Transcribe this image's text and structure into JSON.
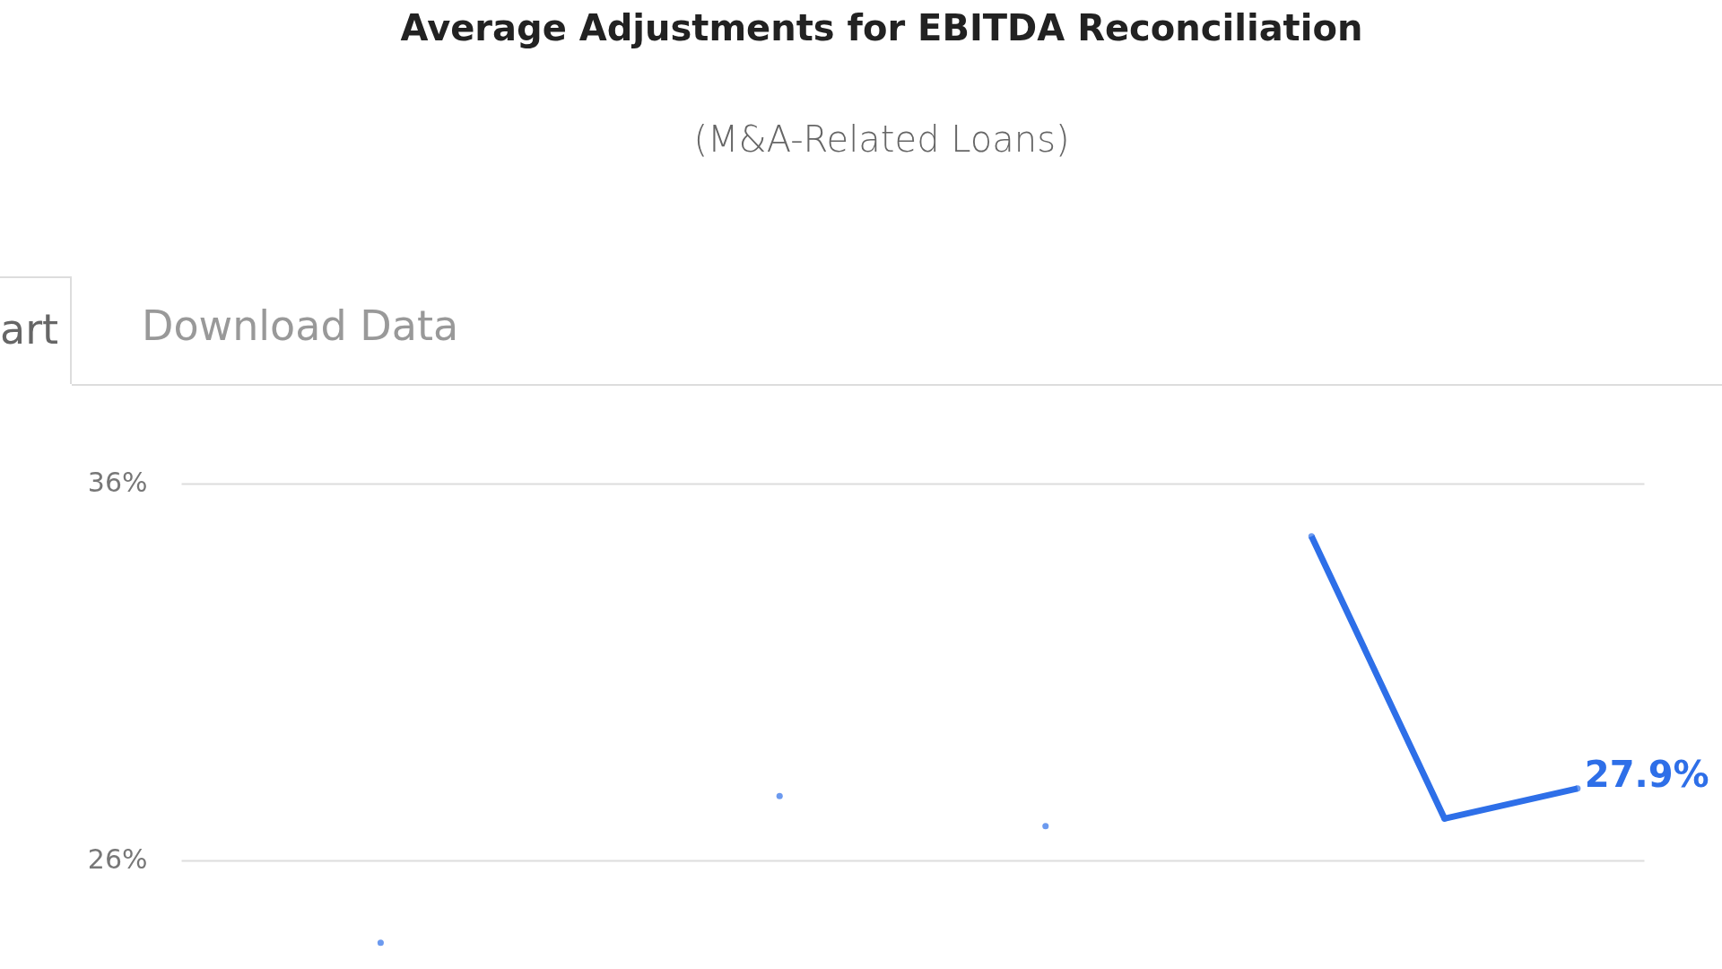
{
  "chart_data": {
    "type": "line",
    "title": "Average Adjustments for EBITDA Reconciliation",
    "subtitle": "(M&A-Related Loans)",
    "annotations": [
      "art",
      "Download Data"
    ],
    "categories": [
      null,
      null,
      null,
      null,
      null,
      null,
      null,
      null,
      null,
      null,
      null
    ],
    "series": [
      {
        "color": "#2e6fe8",
        "values": [
          null,
          23.8,
          null,
          null,
          27.7,
          null,
          26.9,
          null,
          34.6,
          27.1,
          27.9
        ],
        "value_labels": [
          null,
          null,
          null,
          null,
          null,
          null,
          null,
          null,
          null,
          null,
          "27.9%"
        ]
      }
    ],
    "ylim": [
      23.2,
      37.5
    ],
    "yticks": [
      {
        "value": 26,
        "label": "26%"
      },
      {
        "value": 36,
        "label": "36%"
      }
    ],
    "grid": "y",
    "marker": "circle"
  }
}
